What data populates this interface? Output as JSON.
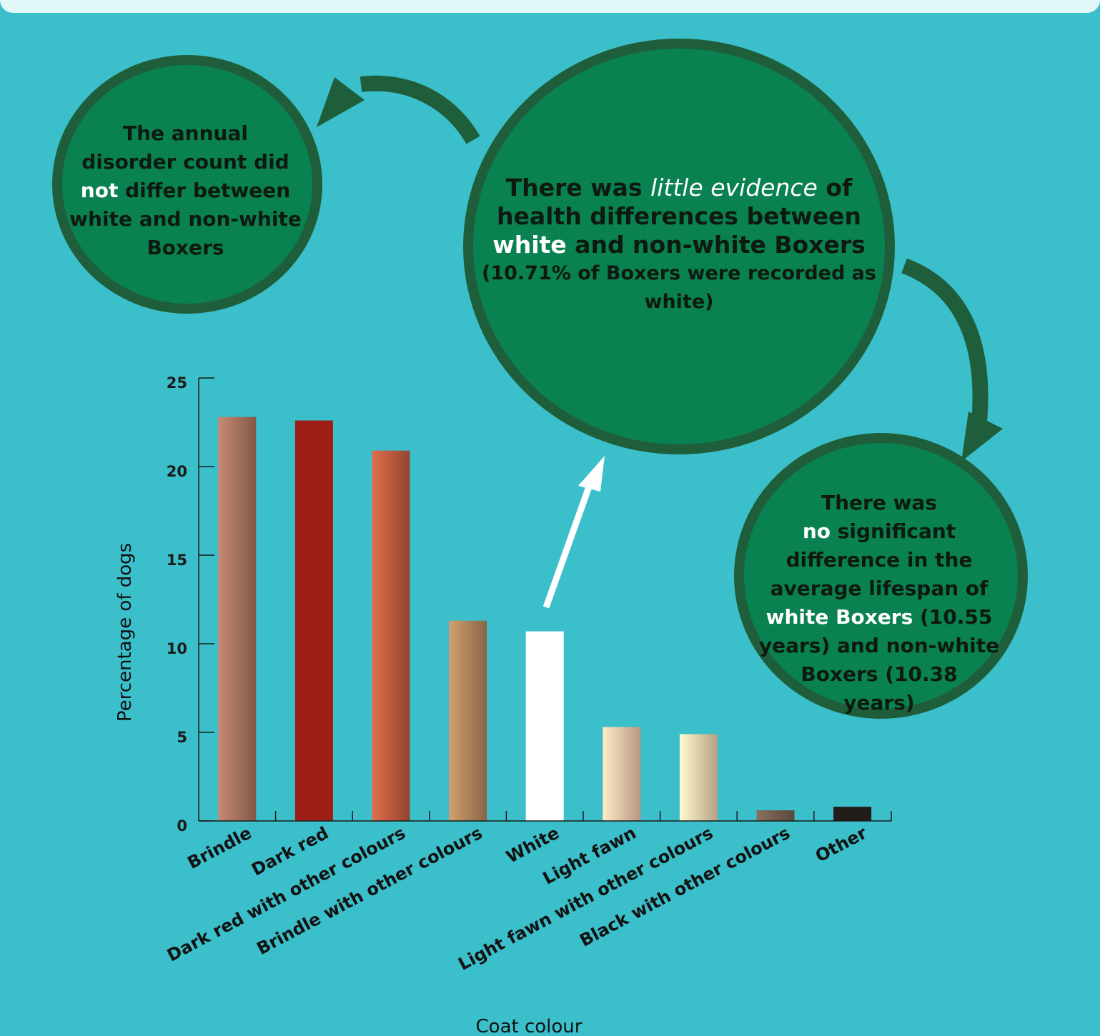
{
  "bubbles": {
    "left": {
      "line1": "The annual",
      "line2": "disorder count did",
      "line3_emph": "not",
      "line3_rest": " differ between",
      "line4": "white and non-white",
      "line5": "Boxers"
    },
    "main": {
      "part1": "There was ",
      "part2_italic": "little evidence",
      "part3": " of",
      "line2": "health differences between",
      "line3_emph": "white",
      "line3_rest": " and non-white Boxers",
      "sub": "(10.71% of Boxers were recorded as white)"
    },
    "right": {
      "line1": "There was",
      "line2_emph": "no",
      "line2_rest": " significant",
      "line3": "difference in the",
      "line4": "average lifespan of",
      "line5_emph": "white Boxers",
      "line5_rest": " (10.55",
      "line6": "years) and non-white",
      "line7": "Boxers (10.38",
      "line8": "years)"
    }
  },
  "chart_data": {
    "type": "bar",
    "xlabel": "Coat colour",
    "ylabel": "Percentage of dogs",
    "ylim": [
      0,
      25
    ],
    "yticks": [
      "0",
      "5",
      "10",
      "15",
      "20",
      "25"
    ],
    "categories": [
      "Brindle",
      "Dark red",
      "Dark red with other colours",
      "Brindle with other colours",
      "White",
      "Light fawn",
      "Light fawn with other colours",
      "Black with other colours",
      "Other"
    ],
    "values": [
      22.8,
      22.6,
      20.9,
      11.3,
      10.7,
      5.3,
      4.9,
      0.6,
      0.8
    ],
    "colors": [
      "#a06e5c",
      "#9e1e15",
      "#b5573c",
      "#a88058",
      "#ffffff",
      "#e4bda0",
      "#e6c8a6",
      "#6e5a4a",
      "#231d1a"
    ],
    "highlight_category": "White"
  }
}
